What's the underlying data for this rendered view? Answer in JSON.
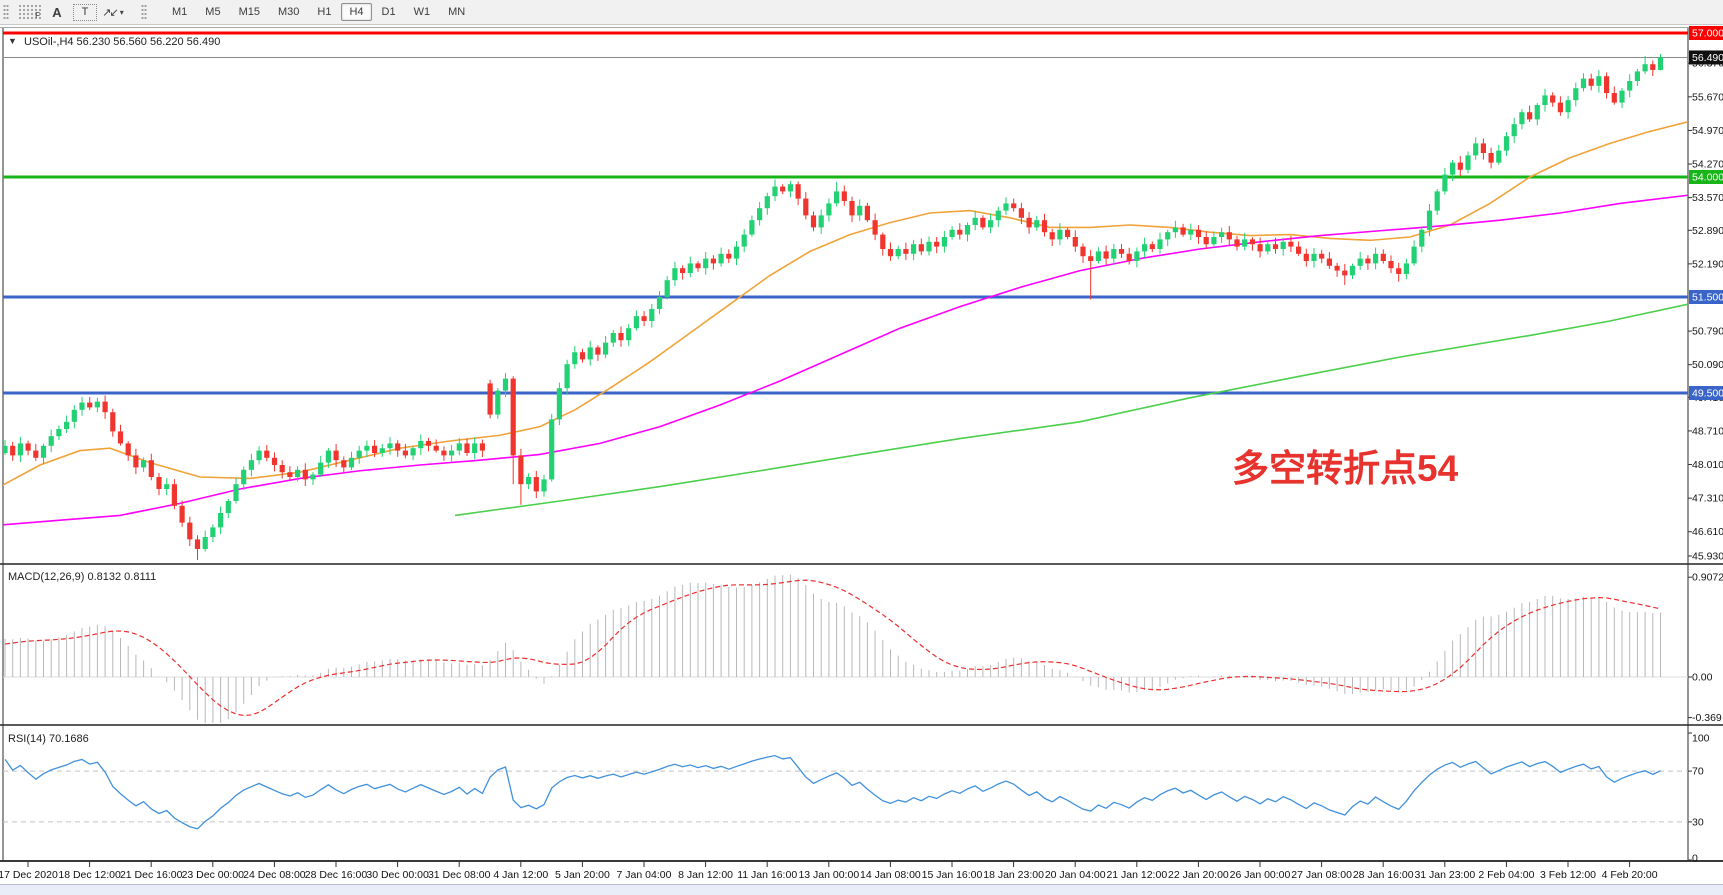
{
  "toolbar": {
    "tools": [
      {
        "name": "chart-grid-tool",
        "glyph": "F"
      },
      {
        "name": "text-label-tool",
        "glyph": "A"
      },
      {
        "name": "text-box-tool",
        "glyph": "T"
      },
      {
        "name": "arrow-objects-tool",
        "glyph": "↗↙",
        "caret": "▾"
      }
    ],
    "timeframes": [
      "M1",
      "M5",
      "M15",
      "M30",
      "H1",
      "H4",
      "D1",
      "W1",
      "MN"
    ],
    "active_timeframe": "H4"
  },
  "header": {
    "marker": "▼",
    "symbol_line": "USOil-,H4  56.230 56.560 56.220 56.490"
  },
  "annotation": {
    "text": "多空转折点54",
    "color": "#e8322e"
  },
  "macd_panel": {
    "label": "MACD(12,26,9) 0.8132 0.8111",
    "axis_labels": [
      {
        "text": "0.9072",
        "value": 0.9072
      },
      {
        "text": "0.00",
        "value": 0
      },
      {
        "text": "-0.369",
        "value": -0.369
      }
    ]
  },
  "rsi_panel": {
    "label": "RSI(14) 70.1686",
    "axis_labels": [
      {
        "text": "100",
        "value": 100
      },
      {
        "text": "70",
        "value": 70
      },
      {
        "text": "30",
        "value": 30
      },
      {
        "text": "0",
        "value": 0
      }
    ],
    "dashed_levels": [
      70,
      30
    ]
  },
  "price_axis": {
    "labels": [
      "56.370",
      "55.670",
      "54.970",
      "54.270",
      "53.570",
      "52.890",
      "52.190",
      "50.790",
      "50.090",
      "49.410",
      "48.710",
      "48.010",
      "47.310",
      "46.610",
      "45.930"
    ],
    "badges": [
      {
        "text": "57.000",
        "price": 57.0,
        "bg": "#fe0000"
      },
      {
        "text": "56.490",
        "price": 56.49,
        "bg": "#101010"
      },
      {
        "text": "54.000",
        "price": 54.0,
        "bg": "#17b517"
      },
      {
        "text": "51.500",
        "price": 51.5,
        "bg": "#3a64c8"
      },
      {
        "text": "49.500",
        "price": 49.5,
        "bg": "#3a64c8"
      }
    ]
  },
  "time_axis": [
    "17 Dec 2020",
    "18 Dec 12:00",
    "21 Dec 16:00",
    "23 Dec 00:00",
    "24 Dec 08:00",
    "28 Dec 16:00",
    "30 Dec 00:00",
    "31 Dec 08:00",
    "4 Jan 12:00",
    "5 Jan 20:00",
    "7 Jan 04:00",
    "8 Jan 12:00",
    "11 Jan 16:00",
    "13 Jan 00:00",
    "14 Jan 08:00",
    "15 Jan 16:00",
    "18 Jan 23:00",
    "20 Jan 04:00",
    "21 Jan 12:00",
    "22 Jan 20:00",
    "26 Jan 00:00",
    "27 Jan 08:00",
    "28 Jan 16:00",
    "31 Jan 23:00",
    "2 Feb 04:00",
    "3 Feb 12:00",
    "4 Feb 20:00"
  ],
  "chart_data": {
    "type": "candlestick",
    "symbol": "USOil",
    "timeframe": "H4",
    "last_ohlc": {
      "open": 56.23,
      "high": 56.56,
      "low": 56.22,
      "close": 56.49
    },
    "macd_values": {
      "main": 0.8132,
      "signal": 0.8111
    },
    "rsi_value": 70.1686,
    "level_lines": [
      {
        "price": 57.0,
        "color": "#fe0000",
        "width": 3
      },
      {
        "price": 54.0,
        "color": "#17b517",
        "width": 3
      },
      {
        "price": 51.5,
        "color": "#3a64c8",
        "width": 3
      },
      {
        "price": 49.5,
        "color": "#3a64c8",
        "width": 3
      },
      {
        "price": 56.49,
        "color": "#8a8a8a",
        "width": 1
      }
    ],
    "closes": [
      48.4,
      48.2,
      48.45,
      48.3,
      48.15,
      48.4,
      48.6,
      48.75,
      48.9,
      49.15,
      49.3,
      49.2,
      49.32,
      49.1,
      48.7,
      48.45,
      48.2,
      47.95,
      48.1,
      47.75,
      47.5,
      47.6,
      47.15,
      46.8,
      46.45,
      46.25,
      46.5,
      46.7,
      47.0,
      47.25,
      47.6,
      47.9,
      48.1,
      48.3,
      48.15,
      48.0,
      47.85,
      47.75,
      47.9,
      47.7,
      47.8,
      48.05,
      48.3,
      48.1,
      47.95,
      48.15,
      48.3,
      48.4,
      48.25,
      48.35,
      48.45,
      48.3,
      48.2,
      48.35,
      48.5,
      48.4,
      48.3,
      48.2,
      48.3,
      48.45,
      48.25,
      48.45,
      48.3,
      49.05,
      49.55,
      49.8,
      48.2,
      47.6,
      47.75,
      47.45,
      47.7,
      48.95,
      49.6,
      50.1,
      50.35,
      50.2,
      50.45,
      50.3,
      50.55,
      50.75,
      50.6,
      50.85,
      51.1,
      51.0,
      51.25,
      51.5,
      51.85,
      52.1,
      52.0,
      52.2,
      52.1,
      52.3,
      52.2,
      52.4,
      52.3,
      52.55,
      52.8,
      53.1,
      53.35,
      53.6,
      53.8,
      53.7,
      53.85,
      53.55,
      53.2,
      52.95,
      53.2,
      53.45,
      53.7,
      53.5,
      53.2,
      53.4,
      53.1,
      52.8,
      52.5,
      52.35,
      52.5,
      52.4,
      52.6,
      52.45,
      52.65,
      52.55,
      52.75,
      52.9,
      52.8,
      53.0,
      53.15,
      52.95,
      53.1,
      53.3,
      53.45,
      53.35,
      53.15,
      52.95,
      53.1,
      52.85,
      52.7,
      52.9,
      52.75,
      52.55,
      52.35,
      52.25,
      52.45,
      52.3,
      52.5,
      52.4,
      52.25,
      52.45,
      52.6,
      52.5,
      52.7,
      52.85,
      52.95,
      52.8,
      52.9,
      52.75,
      52.6,
      52.75,
      52.85,
      52.7,
      52.55,
      52.7,
      52.6,
      52.45,
      52.6,
      52.5,
      52.65,
      52.55,
      52.4,
      52.25,
      52.4,
      52.3,
      52.15,
      52.05,
      51.95,
      52.15,
      52.3,
      52.2,
      52.4,
      52.25,
      52.1,
      51.98,
      52.2,
      52.55,
      52.9,
      53.3,
      53.7,
      54.05,
      54.3,
      54.15,
      54.45,
      54.7,
      54.5,
      54.3,
      54.55,
      54.85,
      55.1,
      55.35,
      55.2,
      55.5,
      55.7,
      55.55,
      55.35,
      55.6,
      55.85,
      56.05,
      55.9,
      56.1,
      55.75,
      55.55,
      55.8,
      56.0,
      56.2,
      56.35,
      56.23,
      56.49
    ],
    "warmup_closes_offscreen": [
      46.6,
      46.78,
      46.72,
      46.9,
      46.84,
      47.02,
      46.96,
      47.14,
      47.08,
      47.26,
      47.2,
      47.38,
      47.32,
      47.5,
      47.44,
      47.62,
      47.56,
      47.74,
      47.68,
      47.86,
      47.8,
      47.98,
      47.92,
      48.1,
      48.04,
      48.22
    ],
    "open_overrides": {
      "0": 48.25,
      "63": 49.7
    },
    "wick_overrides": {
      "10": {
        "h": 49.42
      },
      "12": {
        "h": 49.4
      },
      "25": {
        "l": 46.02
      },
      "63": {
        "h": 49.78
      },
      "65": {
        "h": 49.92
      },
      "66": {
        "l": 47.6
      },
      "67": {
        "l": 47.17
      },
      "100": {
        "h": 53.95
      },
      "102": {
        "h": 53.92
      },
      "108": {
        "h": 53.9
      },
      "141": {
        "l": 51.45
      },
      "174": {
        "l": 51.75
      },
      "181": {
        "l": 51.82
      },
      "213": {
        "h": 56.52
      },
      "215": {
        "h": 56.56,
        "l": 56.22
      }
    },
    "moving_averages": [
      {
        "name": "fast-ma",
        "color": "#efa339",
        "anchors": [
          [
            0,
            47.55
          ],
          [
            40,
            48.0
          ],
          [
            80,
            48.3
          ],
          [
            110,
            48.35
          ],
          [
            150,
            48.05
          ],
          [
            200,
            47.75
          ],
          [
            250,
            47.72
          ],
          [
            300,
            47.85
          ],
          [
            350,
            48.1
          ],
          [
            400,
            48.35
          ],
          [
            450,
            48.5
          ],
          [
            500,
            48.62
          ],
          [
            540,
            48.8
          ],
          [
            575,
            49.15
          ],
          [
            610,
            49.6
          ],
          [
            650,
            50.15
          ],
          [
            690,
            50.75
          ],
          [
            730,
            51.35
          ],
          [
            770,
            51.95
          ],
          [
            810,
            52.45
          ],
          [
            850,
            52.8
          ],
          [
            890,
            53.05
          ],
          [
            930,
            53.25
          ],
          [
            970,
            53.3
          ],
          [
            1010,
            53.15
          ],
          [
            1050,
            52.95
          ],
          [
            1090,
            52.95
          ],
          [
            1130,
            53.0
          ],
          [
            1170,
            52.95
          ],
          [
            1210,
            52.85
          ],
          [
            1250,
            52.78
          ],
          [
            1290,
            52.8
          ],
          [
            1330,
            52.72
          ],
          [
            1370,
            52.68
          ],
          [
            1410,
            52.75
          ],
          [
            1450,
            53.0
          ],
          [
            1490,
            53.45
          ],
          [
            1530,
            54.0
          ],
          [
            1570,
            54.4
          ],
          [
            1610,
            54.7
          ],
          [
            1650,
            54.95
          ],
          [
            1688,
            55.15
          ]
        ]
      },
      {
        "name": "medium-ma",
        "color": "#ff00ff",
        "anchors": [
          [
            0,
            46.75
          ],
          [
            60,
            46.85
          ],
          [
            120,
            46.95
          ],
          [
            180,
            47.2
          ],
          [
            240,
            47.5
          ],
          [
            300,
            47.72
          ],
          [
            360,
            47.88
          ],
          [
            420,
            48.0
          ],
          [
            480,
            48.1
          ],
          [
            540,
            48.22
          ],
          [
            600,
            48.45
          ],
          [
            660,
            48.8
          ],
          [
            720,
            49.25
          ],
          [
            780,
            49.75
          ],
          [
            840,
            50.3
          ],
          [
            900,
            50.85
          ],
          [
            960,
            51.3
          ],
          [
            1020,
            51.7
          ],
          [
            1080,
            52.05
          ],
          [
            1140,
            52.3
          ],
          [
            1200,
            52.5
          ],
          [
            1260,
            52.65
          ],
          [
            1320,
            52.78
          ],
          [
            1380,
            52.88
          ],
          [
            1440,
            52.98
          ],
          [
            1500,
            53.1
          ],
          [
            1560,
            53.25
          ],
          [
            1620,
            53.45
          ],
          [
            1688,
            53.62
          ]
        ]
      },
      {
        "name": "slow-ma",
        "color": "#4ccf4c",
        "anchors": [
          [
            455,
            46.95
          ],
          [
            560,
            47.25
          ],
          [
            660,
            47.55
          ],
          [
            760,
            47.88
          ],
          [
            860,
            48.22
          ],
          [
            960,
            48.55
          ],
          [
            1080,
            48.9
          ],
          [
            1190,
            49.4
          ],
          [
            1300,
            49.85
          ],
          [
            1400,
            50.25
          ],
          [
            1530,
            50.7
          ],
          [
            1610,
            51.0
          ],
          [
            1688,
            51.35
          ]
        ]
      }
    ],
    "colors": {
      "bull": "#22d173",
      "bear": "#f0352f",
      "macd_bars": "#b8b8b8",
      "macd_signal": "#ec2f2f",
      "rsi_line": "#4191dc",
      "rsi_levels": "#c4c4c4",
      "axis_text": "#151515"
    },
    "indicator_params": {
      "macd": [
        12,
        26,
        9
      ],
      "rsi": 14
    }
  }
}
